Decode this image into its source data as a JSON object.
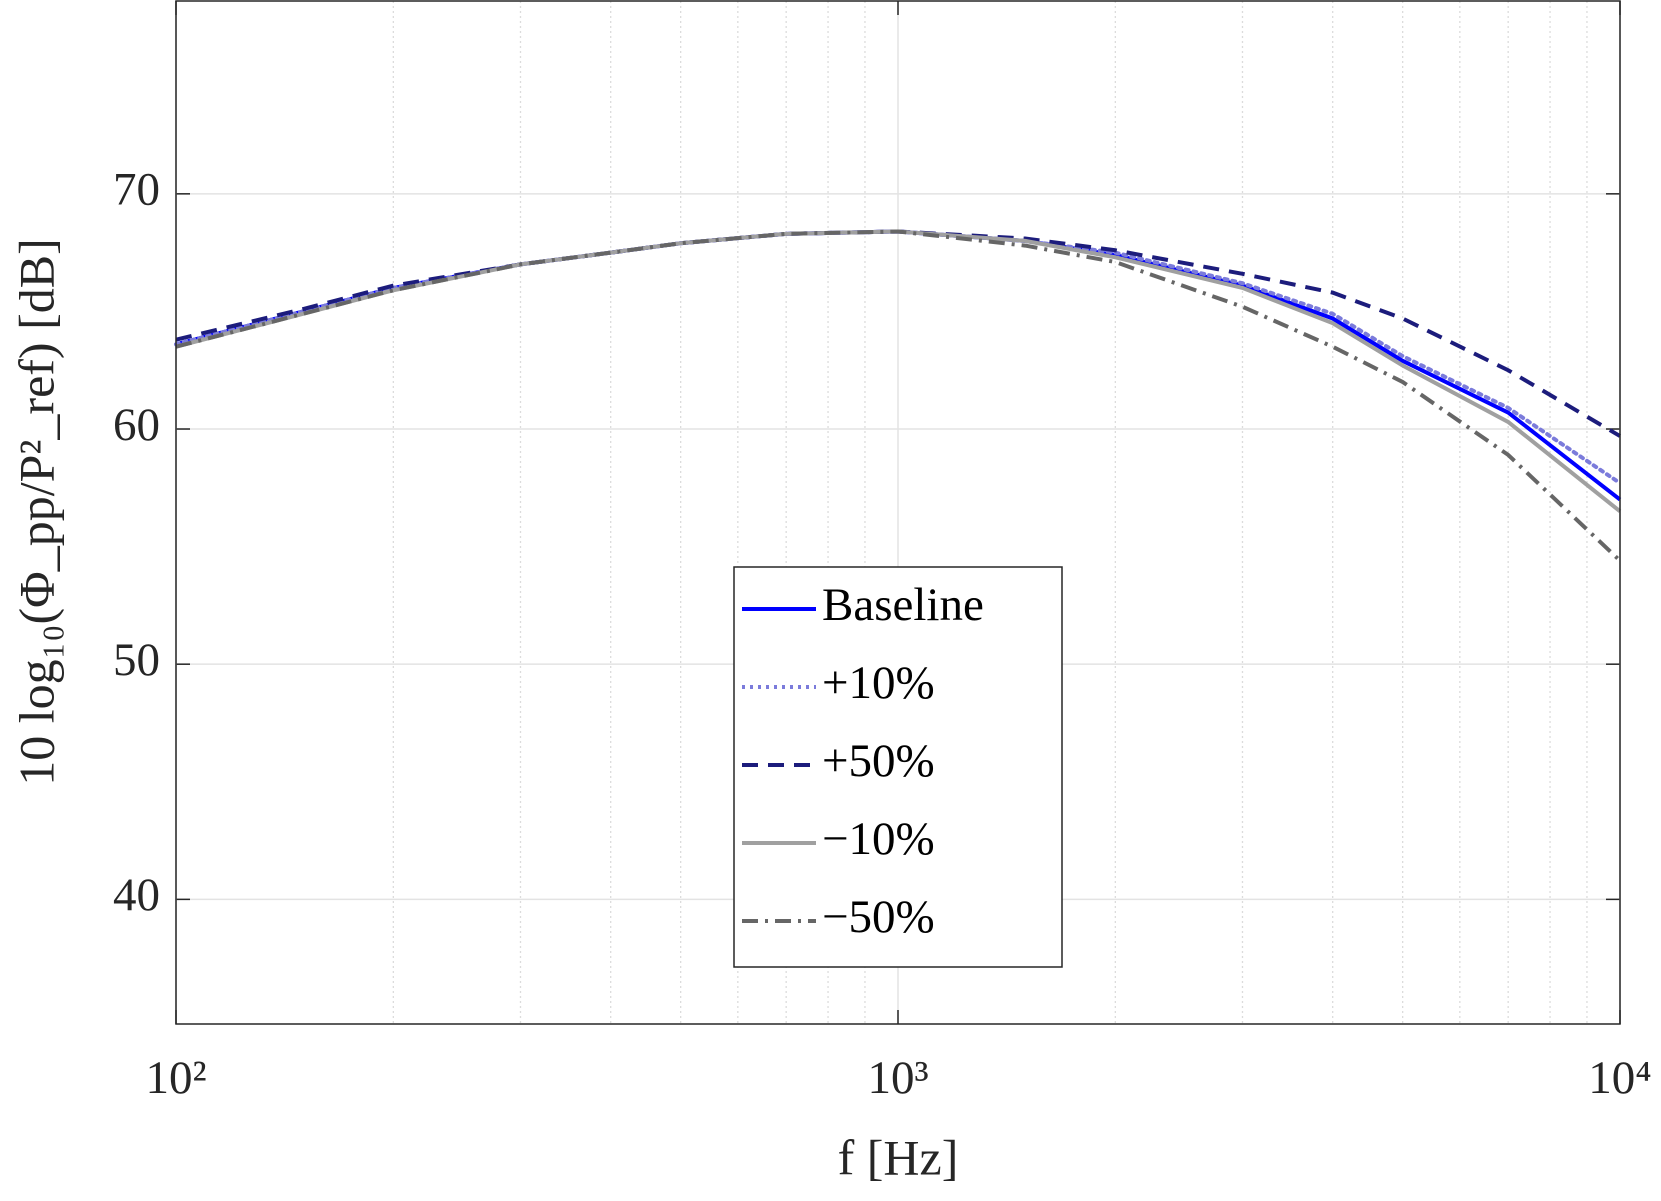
{
  "chart_data": {
    "type": "line",
    "xlabel": "f [Hz]",
    "ylabel": "10 log₁₀(Φ_pp/P²_ref) [dB]",
    "x": [
      100,
      150,
      200,
      300,
      400,
      500,
      700,
      1000,
      1500,
      2000,
      3000,
      4000,
      5000,
      7000,
      10000
    ],
    "xlim": [
      100,
      10000
    ],
    "xscale": "log",
    "xticks": [
      {
        "value": 100,
        "label": "10²"
      },
      {
        "value": 1000,
        "label": "10³"
      },
      {
        "value": 10000,
        "label": "10⁴"
      }
    ],
    "ylim": [
      34.7,
      78.2
    ],
    "yticks": [
      40,
      50,
      60,
      70
    ],
    "grid": true,
    "minor_grid": true,
    "legend": "south",
    "series": [
      {
        "name": "Baseline",
        "color": "#0000ff",
        "linestyle": "solid",
        "values": [
          63.6,
          65.0,
          66.0,
          67.0,
          67.5,
          67.9,
          68.3,
          68.4,
          68.0,
          67.4,
          66.1,
          64.7,
          62.9,
          60.7,
          57.0
        ]
      },
      {
        "name": "+10%",
        "color": "#7b7bdb",
        "linestyle": "dotted",
        "values": [
          63.6,
          65.0,
          66.0,
          67.0,
          67.5,
          67.9,
          68.3,
          68.4,
          68.0,
          67.5,
          66.2,
          64.9,
          63.1,
          60.9,
          57.7
        ]
      },
      {
        "name": "+50%",
        "color": "#1c1c7c",
        "linestyle": "dashed",
        "values": [
          63.8,
          65.1,
          66.1,
          67.0,
          67.5,
          67.9,
          68.3,
          68.4,
          68.1,
          67.6,
          66.6,
          65.8,
          64.7,
          62.5,
          59.7
        ]
      },
      {
        "name": "−10%",
        "color": "#a0a0a0",
        "linestyle": "solid",
        "values": [
          63.5,
          64.9,
          65.9,
          67.0,
          67.5,
          67.9,
          68.3,
          68.4,
          68.0,
          67.3,
          66.0,
          64.5,
          62.7,
          60.3,
          56.5
        ]
      },
      {
        "name": "−50%",
        "color": "#666666",
        "linestyle": "dashdot",
        "values": [
          63.5,
          64.9,
          65.9,
          67.0,
          67.5,
          67.9,
          68.3,
          68.4,
          67.8,
          67.1,
          65.2,
          63.5,
          62.0,
          58.9,
          54.4
        ]
      }
    ]
  }
}
